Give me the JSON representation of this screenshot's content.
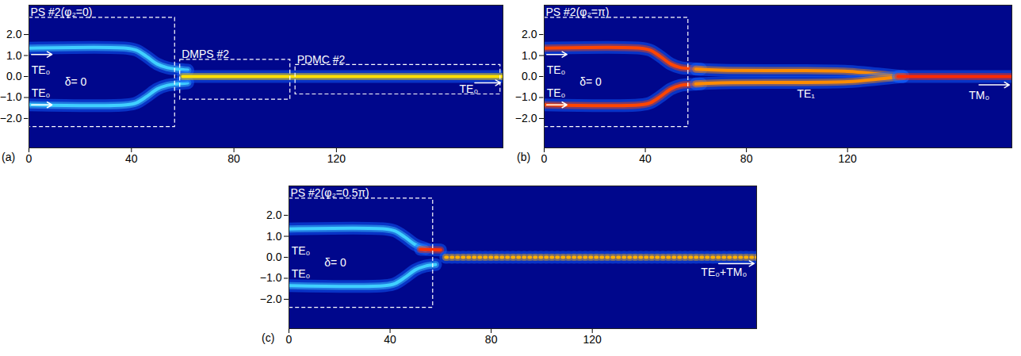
{
  "chart_data": [
    {
      "type": "line",
      "label": "(a)",
      "xlim": [
        0,
        185
      ],
      "xticks": [
        0,
        40,
        80,
        120
      ],
      "ylim": [
        -3.4,
        3.4
      ],
      "yticks": [
        -2,
        -1,
        0,
        1,
        2
      ],
      "series": [
        {
          "color": "#40d0ff",
          "line_style": "solid",
          "x": [
            0,
            38,
            42,
            46,
            50,
            54,
            58,
            62
          ],
          "y": [
            1.35,
            1.35,
            1.25,
            0.95,
            0.6,
            0.42,
            0.35,
            0.3
          ]
        },
        {
          "color": "#40d0ff",
          "line_style": "solid",
          "x": [
            0,
            38,
            42,
            46,
            50,
            54,
            58,
            62
          ],
          "y": [
            -1.35,
            -1.35,
            -1.25,
            -0.95,
            -0.6,
            -0.42,
            -0.35,
            -0.3
          ]
        },
        {
          "color": "#ffe000",
          "line_style": "solid",
          "x": [
            60,
            185
          ],
          "y": [
            0,
            0
          ]
        }
      ],
      "boxes": [
        {
          "label": "PS #2(φ₂=0)",
          "x": [
            0,
            57
          ],
          "y": [
            -2.4,
            2.8
          ]
        },
        {
          "label": "DMPS #2",
          "x": [
            59,
            102
          ],
          "y": [
            -1.1,
            0.8
          ]
        },
        {
          "label": "PDMC #2",
          "x": [
            104,
            184
          ],
          "y": [
            -0.85,
            0.55
          ]
        }
      ],
      "annotations": [
        {
          "text": "TE₀",
          "x": 1,
          "y": 0.3
        },
        {
          "text": "δ= 0",
          "x": 14,
          "y": -0.25
        },
        {
          "text": "TE₀",
          "x": 1,
          "y": -0.8
        },
        {
          "text": "TE₀",
          "x": 168,
          "y": -0.62
        }
      ],
      "arrows": [
        {
          "x": [
            1,
            9
          ],
          "y": 1.05
        },
        {
          "x": [
            1,
            9
          ],
          "y": -1.35
        },
        {
          "x": [
            174,
            184
          ],
          "y": -0.3
        }
      ]
    },
    {
      "type": "line",
      "label": "(b)",
      "xlim": [
        0,
        185
      ],
      "xticks": [
        0,
        40,
        80,
        120
      ],
      "ylim": [
        -3.4,
        3.4
      ],
      "yticks": [
        -2,
        -1,
        0,
        1,
        2
      ],
      "series": [
        {
          "color": "#ff4500",
          "line_style": "solid",
          "x": [
            0,
            38,
            42,
            46,
            50,
            54,
            58,
            62
          ],
          "y": [
            1.35,
            1.35,
            1.25,
            0.95,
            0.6,
            0.42,
            0.38,
            0.35
          ]
        },
        {
          "color": "#ff4500",
          "line_style": "solid",
          "x": [
            0,
            38,
            42,
            46,
            50,
            54,
            58,
            62
          ],
          "y": [
            -1.35,
            -1.35,
            -1.25,
            -0.95,
            -0.6,
            -0.42,
            -0.38,
            -0.35
          ]
        },
        {
          "color": "#ff8c00",
          "line_style": "solid",
          "x": [
            60,
            70,
            120,
            132,
            142
          ],
          "y": [
            0.35,
            0.3,
            0.25,
            0.12,
            0
          ]
        },
        {
          "color": "#ff8c00",
          "line_style": "solid",
          "x": [
            60,
            70,
            120,
            132,
            142
          ],
          "y": [
            -0.35,
            -0.3,
            -0.25,
            -0.12,
            0
          ]
        },
        {
          "color": "#ff2a00",
          "line_style": "solid",
          "x": [
            140,
            185
          ],
          "y": [
            0,
            0
          ]
        }
      ],
      "boxes": [
        {
          "label": "PS #2(φ₂=π)",
          "x": [
            0,
            57
          ],
          "y": [
            -2.4,
            2.8
          ]
        }
      ],
      "annotations": [
        {
          "text": "TE₀",
          "x": 1,
          "y": 0.3
        },
        {
          "text": "δ= 0",
          "x": 14,
          "y": -0.25
        },
        {
          "text": "TE₀",
          "x": 1,
          "y": -0.8
        },
        {
          "text": "TE₁",
          "x": 100,
          "y": -0.85
        },
        {
          "text": "TM₀",
          "x": 168,
          "y": -0.9
        }
      ],
      "arrows": [
        {
          "x": [
            1,
            9
          ],
          "y": 1.05
        },
        {
          "x": [
            1,
            9
          ],
          "y": -1.35
        },
        {
          "x": [
            172,
            184
          ],
          "y": -0.4
        }
      ]
    },
    {
      "type": "line",
      "label": "(c)",
      "xlim": [
        0,
        185
      ],
      "xticks": [
        0,
        40,
        80,
        120
      ],
      "ylim": [
        -3.4,
        3.4
      ],
      "yticks": [
        -2,
        -1,
        0,
        1,
        2
      ],
      "series": [
        {
          "color": "#40d0ff",
          "line_style": "solid",
          "x": [
            0,
            38,
            42,
            46,
            50,
            54
          ],
          "y": [
            1.35,
            1.35,
            1.25,
            0.95,
            0.6,
            0.42
          ]
        },
        {
          "color": "#40d0ff",
          "line_style": "solid",
          "x": [
            0,
            38,
            42,
            46,
            50,
            54,
            58
          ],
          "y": [
            -1.35,
            -1.35,
            -1.25,
            -0.95,
            -0.6,
            -0.42,
            -0.35
          ]
        },
        {
          "color": "#ff3000",
          "line_style": "solid",
          "x": [
            52,
            60
          ],
          "y": [
            0.38,
            0.35
          ]
        },
        {
          "color": "#ffb000",
          "line_style": "dotted",
          "x": [
            62,
            185
          ],
          "y": [
            0,
            0
          ]
        }
      ],
      "boxes": [
        {
          "label": "PS #2(φ₂=0.5π)",
          "x": [
            0,
            57
          ],
          "y": [
            -2.4,
            2.8
          ]
        }
      ],
      "annotations": [
        {
          "text": "TE₀",
          "x": 1,
          "y": 0.3
        },
        {
          "text": "δ= 0",
          "x": 14,
          "y": -0.25
        },
        {
          "text": "TE₀",
          "x": 1,
          "y": -0.8
        },
        {
          "text": "TE₀+TM₀",
          "x": 163,
          "y": -0.7
        }
      ],
      "arrows": [
        {
          "x": [
            170,
            184
          ],
          "y": -0.3
        }
      ]
    }
  ]
}
